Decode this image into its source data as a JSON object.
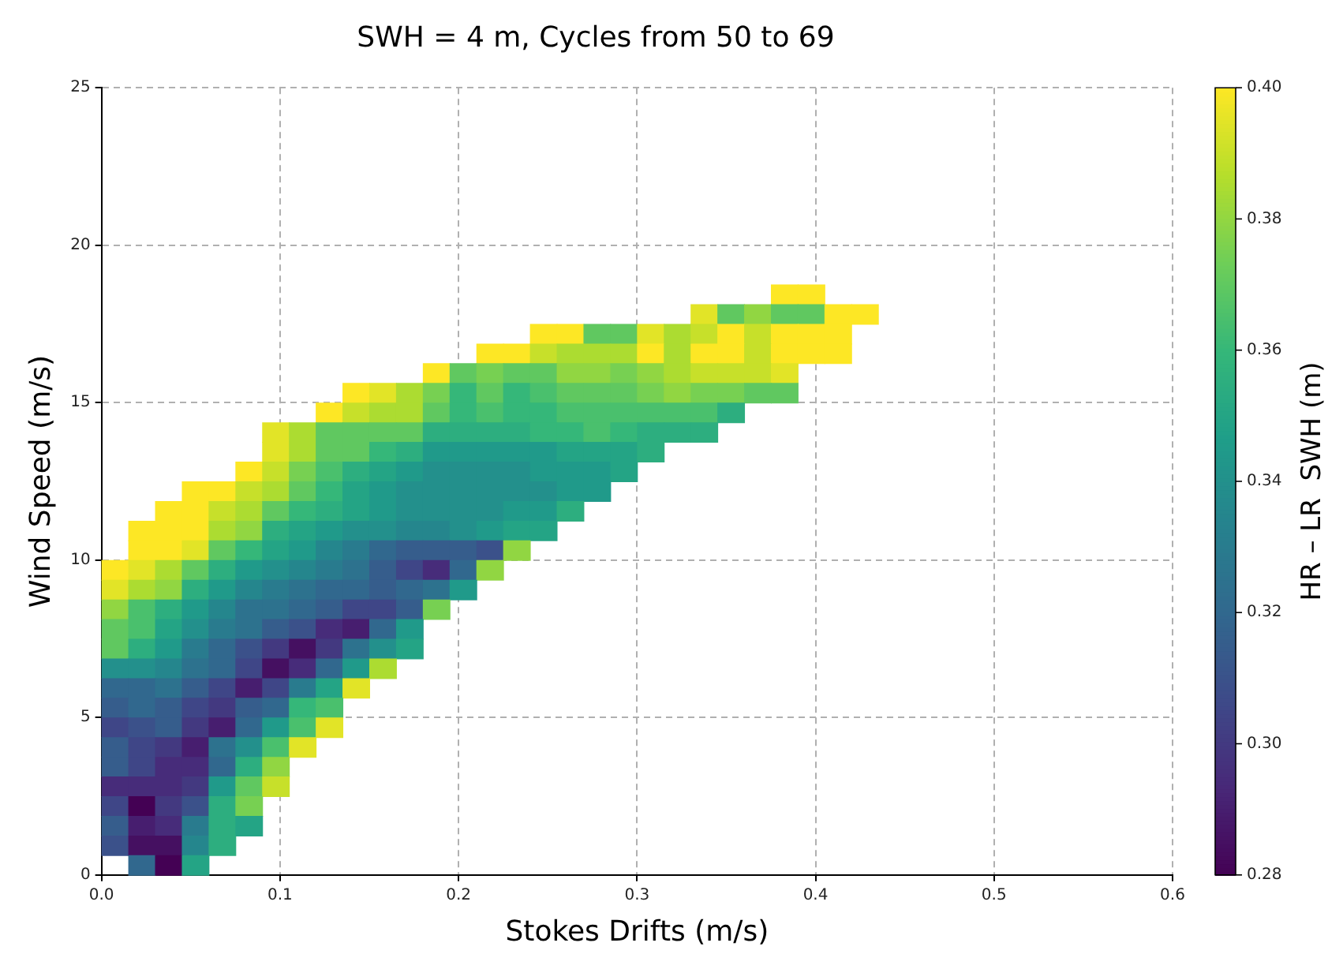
{
  "chart_data": {
    "type": "heatmap",
    "title": "SWH = 4 m, Cycles from 50 to 69",
    "xlabel": "Stokes Drifts (m/s)",
    "ylabel": "Wind Speed (m/s)",
    "clabel": "HR – LR  SWH (m)",
    "xlim": [
      0,
      0.6
    ],
    "ylim": [
      0,
      25
    ],
    "xticks": [
      {
        "value": 0,
        "label": "0.0"
      },
      {
        "value": 0.1,
        "label": "0.1"
      },
      {
        "value": 0.2,
        "label": "0.2"
      },
      {
        "value": 0.3,
        "label": "0.3"
      },
      {
        "value": 0.4,
        "label": "0.4"
      },
      {
        "value": 0.5,
        "label": "0.5"
      },
      {
        "value": 0.6,
        "label": "0.6"
      }
    ],
    "yticks": [
      0,
      5,
      10,
      15,
      20,
      25
    ],
    "clim": [
      0.28,
      0.4
    ],
    "cticks": [
      {
        "value": 0.28,
        "label": "0.28"
      },
      {
        "value": 0.3,
        "label": "0.30"
      },
      {
        "value": 0.32,
        "label": "0.32"
      },
      {
        "value": 0.34,
        "label": "0.34"
      },
      {
        "value": 0.36,
        "label": "0.36"
      },
      {
        "value": 0.38,
        "label": "0.38"
      },
      {
        "value": 0.4,
        "label": "0.40"
      }
    ],
    "grid": true,
    "legend": false,
    "x": [
      0.0075,
      0.0225,
      0.0375,
      0.0525,
      0.0675,
      0.0825,
      0.0975,
      0.1125,
      0.1275,
      0.1425,
      0.1575,
      0.1725,
      0.1875,
      0.2025,
      0.2175,
      0.2325,
      0.2475,
      0.2625,
      0.2775,
      0.2925,
      0.3075,
      0.3225,
      0.3375,
      0.3525,
      0.3675,
      0.3825,
      0.3975,
      0.4125,
      0.4275
    ],
    "y": [
      18.4375,
      17.8125,
      17.1875,
      16.5625,
      15.9375,
      15.3125,
      14.6875,
      14.0625,
      13.4375,
      12.8125,
      12.1875,
      11.5625,
      10.9375,
      10.3125,
      9.6875,
      9.0625,
      8.4375,
      7.8125,
      7.1875,
      6.5625,
      5.9375,
      5.3125,
      4.6875,
      4.0625,
      3.4375,
      2.8125,
      2.1875,
      1.5625,
      0.9375,
      0.3125
    ],
    "cells": [
      [
        null,
        null,
        null,
        null,
        null,
        null,
        null,
        null,
        null,
        null,
        null,
        null,
        null,
        null,
        null,
        null,
        null,
        null,
        null,
        null,
        null,
        null,
        null,
        null,
        null,
        0.4,
        0.4,
        null,
        null
      ],
      [
        null,
        null,
        null,
        null,
        null,
        null,
        null,
        null,
        null,
        null,
        null,
        null,
        null,
        null,
        null,
        null,
        null,
        null,
        null,
        null,
        null,
        null,
        0.395,
        0.37,
        0.38,
        0.37,
        0.37,
        0.4,
        0.4
      ],
      [
        null,
        null,
        null,
        null,
        null,
        null,
        null,
        null,
        null,
        null,
        null,
        null,
        null,
        null,
        null,
        null,
        0.4,
        0.4,
        0.37,
        0.37,
        0.395,
        0.385,
        0.39,
        0.4,
        0.39,
        0.4,
        0.4,
        0.4,
        null
      ],
      [
        null,
        null,
        null,
        null,
        null,
        null,
        null,
        null,
        null,
        null,
        null,
        null,
        null,
        null,
        0.4,
        0.4,
        0.39,
        0.385,
        0.385,
        0.385,
        0.4,
        0.385,
        0.4,
        0.4,
        0.39,
        0.4,
        0.4,
        0.4,
        null
      ],
      [
        null,
        null,
        null,
        null,
        null,
        null,
        null,
        null,
        null,
        null,
        null,
        null,
        0.4,
        0.37,
        0.375,
        0.37,
        0.37,
        0.38,
        0.38,
        0.375,
        0.38,
        0.385,
        0.39,
        0.39,
        0.39,
        0.395,
        null,
        null,
        null
      ],
      [
        null,
        null,
        null,
        null,
        null,
        null,
        null,
        null,
        null,
        0.4,
        0.395,
        0.385,
        0.375,
        0.36,
        0.37,
        0.36,
        0.365,
        0.37,
        0.37,
        0.37,
        0.375,
        0.38,
        0.375,
        0.375,
        0.37,
        0.37,
        null,
        null,
        null
      ],
      [
        null,
        null,
        null,
        null,
        null,
        null,
        null,
        null,
        0.4,
        0.39,
        0.385,
        0.385,
        0.37,
        0.36,
        0.365,
        0.36,
        0.36,
        0.365,
        0.365,
        0.365,
        0.365,
        0.365,
        0.365,
        0.355,
        null,
        null,
        null,
        null,
        null
      ],
      [
        null,
        null,
        null,
        null,
        null,
        null,
        0.395,
        0.385,
        0.37,
        0.37,
        0.37,
        0.37,
        0.355,
        0.355,
        0.355,
        0.355,
        0.36,
        0.36,
        0.365,
        0.36,
        0.355,
        0.355,
        0.355,
        null,
        null,
        null,
        null,
        null,
        null
      ],
      [
        null,
        null,
        null,
        null,
        null,
        null,
        0.395,
        0.385,
        0.37,
        0.37,
        0.36,
        0.355,
        0.345,
        0.345,
        0.345,
        0.345,
        0.345,
        0.35,
        0.35,
        0.35,
        0.355,
        null,
        null,
        null,
        null,
        null,
        null,
        null,
        null
      ],
      [
        null,
        null,
        null,
        null,
        null,
        0.4,
        0.39,
        0.375,
        0.365,
        0.355,
        0.35,
        0.345,
        0.34,
        0.34,
        0.34,
        0.34,
        0.345,
        0.345,
        0.345,
        0.35,
        null,
        null,
        null,
        null,
        null,
        null,
        null,
        null,
        null
      ],
      [
        null,
        null,
        null,
        0.4,
        0.4,
        0.39,
        0.385,
        0.37,
        0.36,
        0.35,
        0.345,
        0.34,
        0.34,
        0.34,
        0.34,
        0.34,
        0.34,
        0.345,
        0.345,
        null,
        null,
        null,
        null,
        null,
        null,
        null,
        null,
        null,
        null
      ],
      [
        null,
        null,
        0.4,
        0.4,
        0.39,
        0.385,
        0.37,
        0.36,
        0.355,
        0.35,
        0.345,
        0.34,
        0.34,
        0.34,
        0.34,
        0.345,
        0.345,
        0.355,
        null,
        null,
        null,
        null,
        null,
        null,
        null,
        null,
        null,
        null,
        null
      ],
      [
        null,
        0.4,
        0.4,
        0.4,
        0.385,
        0.38,
        0.355,
        0.35,
        0.345,
        0.34,
        0.34,
        0.335,
        0.335,
        0.34,
        0.345,
        0.35,
        0.35,
        null,
        null,
        null,
        null,
        null,
        null,
        null,
        null,
        null,
        null,
        null,
        null
      ],
      [
        null,
        0.4,
        0.4,
        0.395,
        0.37,
        0.36,
        0.35,
        0.345,
        0.335,
        0.33,
        0.32,
        0.315,
        0.315,
        0.315,
        0.31,
        0.38,
        null,
        null,
        null,
        null,
        null,
        null,
        null,
        null,
        null,
        null,
        null,
        null,
        null
      ],
      [
        0.4,
        0.395,
        0.385,
        0.37,
        0.355,
        0.345,
        0.34,
        0.335,
        0.33,
        0.325,
        0.315,
        0.305,
        0.295,
        0.32,
        0.38,
        null,
        null,
        null,
        null,
        null,
        null,
        null,
        null,
        null,
        null,
        null,
        null,
        null,
        null
      ],
      [
        0.395,
        0.385,
        0.38,
        0.355,
        0.345,
        0.335,
        0.33,
        0.325,
        0.32,
        0.32,
        0.315,
        0.32,
        0.325,
        0.345,
        null,
        null,
        null,
        null,
        null,
        null,
        null,
        null,
        null,
        null,
        null,
        null,
        null,
        null,
        null
      ],
      [
        0.38,
        0.365,
        0.355,
        0.345,
        0.335,
        0.325,
        0.325,
        0.32,
        0.315,
        0.305,
        0.305,
        0.315,
        0.375,
        null,
        null,
        null,
        null,
        null,
        null,
        null,
        null,
        null,
        null,
        null,
        null,
        null,
        null,
        null,
        null
      ],
      [
        0.37,
        0.365,
        0.35,
        0.34,
        0.33,
        0.325,
        0.315,
        0.31,
        0.295,
        0.29,
        0.32,
        0.345,
        null,
        null,
        null,
        null,
        null,
        null,
        null,
        null,
        null,
        null,
        null,
        null,
        null,
        null,
        null,
        null,
        null
      ],
      [
        0.37,
        0.355,
        0.345,
        0.33,
        0.32,
        0.31,
        0.3,
        0.285,
        0.3,
        0.325,
        0.34,
        0.35,
        null,
        null,
        null,
        null,
        null,
        null,
        null,
        null,
        null,
        null,
        null,
        null,
        null,
        null,
        null,
        null,
        null
      ],
      [
        0.34,
        0.34,
        0.335,
        0.325,
        0.32,
        0.305,
        0.285,
        0.295,
        0.32,
        0.345,
        0.385,
        null,
        null,
        null,
        null,
        null,
        null,
        null,
        null,
        null,
        null,
        null,
        null,
        null,
        null,
        null,
        null,
        null,
        null
      ],
      [
        0.32,
        0.32,
        0.325,
        0.315,
        0.305,
        0.29,
        0.305,
        0.33,
        0.35,
        0.395,
        null,
        null,
        null,
        null,
        null,
        null,
        null,
        null,
        null,
        null,
        null,
        null,
        null,
        null,
        null,
        null,
        null,
        null,
        null
      ],
      [
        0.315,
        0.32,
        0.315,
        0.305,
        0.3,
        0.315,
        0.32,
        0.36,
        0.365,
        null,
        null,
        null,
        null,
        null,
        null,
        null,
        null,
        null,
        null,
        null,
        null,
        null,
        null,
        null,
        null,
        null,
        null,
        null,
        null
      ],
      [
        0.305,
        0.31,
        0.315,
        0.3,
        0.29,
        0.32,
        0.345,
        0.365,
        0.395,
        null,
        null,
        null,
        null,
        null,
        null,
        null,
        null,
        null,
        null,
        null,
        null,
        null,
        null,
        null,
        null,
        null,
        null,
        null,
        null
      ],
      [
        0.315,
        0.305,
        0.3,
        0.29,
        0.325,
        0.34,
        0.365,
        0.395,
        null,
        null,
        null,
        null,
        null,
        null,
        null,
        null,
        null,
        null,
        null,
        null,
        null,
        null,
        null,
        null,
        null,
        null,
        null,
        null,
        null
      ],
      [
        0.315,
        0.305,
        0.295,
        0.295,
        0.32,
        0.355,
        0.38,
        null,
        null,
        null,
        null,
        null,
        null,
        null,
        null,
        null,
        null,
        null,
        null,
        null,
        null,
        null,
        null,
        null,
        null,
        null,
        null,
        null,
        null
      ],
      [
        0.295,
        0.295,
        0.295,
        0.3,
        0.345,
        0.37,
        0.39,
        null,
        null,
        null,
        null,
        null,
        null,
        null,
        null,
        null,
        null,
        null,
        null,
        null,
        null,
        null,
        null,
        null,
        null,
        null,
        null,
        null,
        null
      ],
      [
        0.305,
        0.28,
        0.3,
        0.31,
        0.355,
        0.375,
        null,
        null,
        null,
        null,
        null,
        null,
        null,
        null,
        null,
        null,
        null,
        null,
        null,
        null,
        null,
        null,
        null,
        null,
        null,
        null,
        null,
        null,
        null
      ],
      [
        0.315,
        0.29,
        0.295,
        0.33,
        0.355,
        0.35,
        null,
        null,
        null,
        null,
        null,
        null,
        null,
        null,
        null,
        null,
        null,
        null,
        null,
        null,
        null,
        null,
        null,
        null,
        null,
        null,
        null,
        null,
        null
      ],
      [
        0.31,
        0.285,
        0.285,
        0.335,
        0.355,
        null,
        null,
        null,
        null,
        null,
        null,
        null,
        null,
        null,
        null,
        null,
        null,
        null,
        null,
        null,
        null,
        null,
        null,
        null,
        null,
        null,
        null,
        null,
        null
      ],
      [
        null,
        0.32,
        0.28,
        0.35,
        null,
        null,
        null,
        null,
        null,
        null,
        null,
        null,
        null,
        null,
        null,
        null,
        null,
        null,
        null,
        null,
        null,
        null,
        null,
        null,
        null,
        null,
        null,
        null,
        null
      ]
    ]
  }
}
